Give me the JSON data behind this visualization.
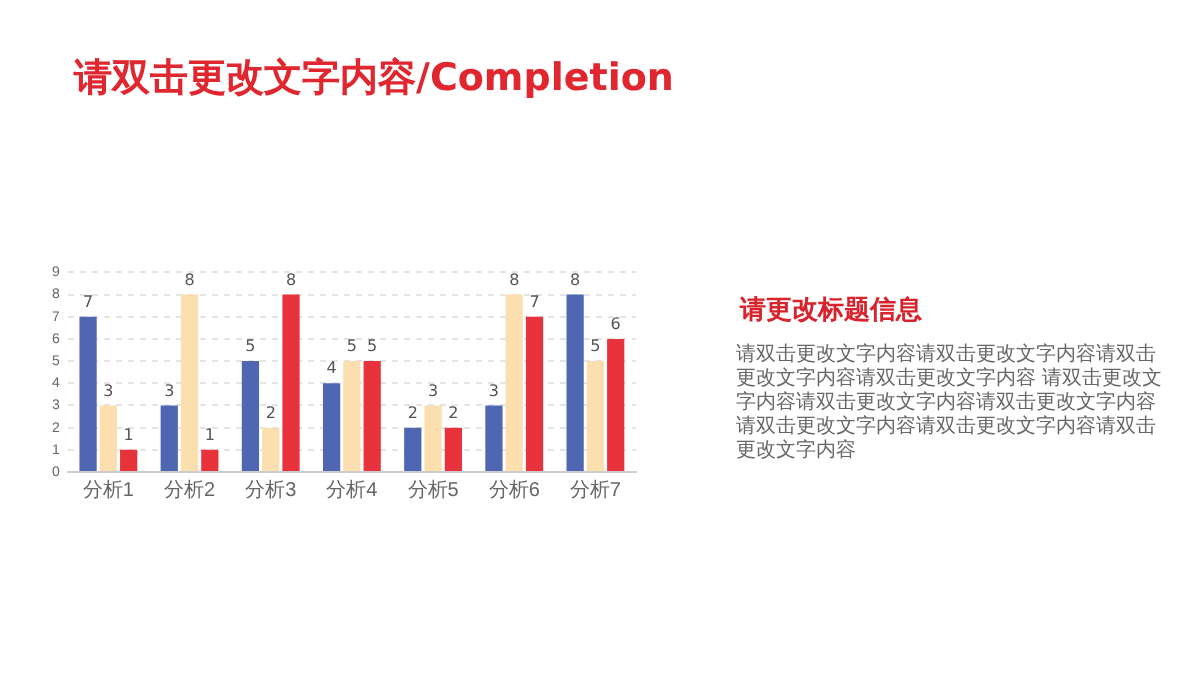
{
  "chart_data": {
    "type": "bar",
    "title": "请双击更改文字内容/Completion",
    "categories": [
      "分析1",
      "分析2",
      "分析3",
      "分析4",
      "分析5",
      "分析6",
      "分析7"
    ],
    "series": [
      {
        "color": "#4f66b3",
        "values": [
          7,
          3,
          5,
          4,
          2,
          3,
          8
        ]
      },
      {
        "color": "#fbdfae",
        "values": [
          3,
          8,
          2,
          5,
          3,
          8,
          5
        ]
      },
      {
        "color": "#e8333c",
        "values": [
          1,
          1,
          8,
          5,
          2,
          7,
          6
        ]
      }
    ],
    "ylim": [
      0,
      9
    ],
    "yticks": [
      0,
      1,
      2,
      3,
      4,
      5,
      6,
      7,
      8,
      9
    ],
    "grid": "y",
    "legend": false,
    "data_labels": true,
    "annotations": [
      "请更改标题信息",
      "请双击更改文字内容请双击更改文字内容请双击更改文字内容请双击更改文字内容 请双击更改文字内容请双击更改文字内容请双击更改文字内容请双击更改文字内容请双击更改文字内容请双击更改文字内容"
    ]
  }
}
